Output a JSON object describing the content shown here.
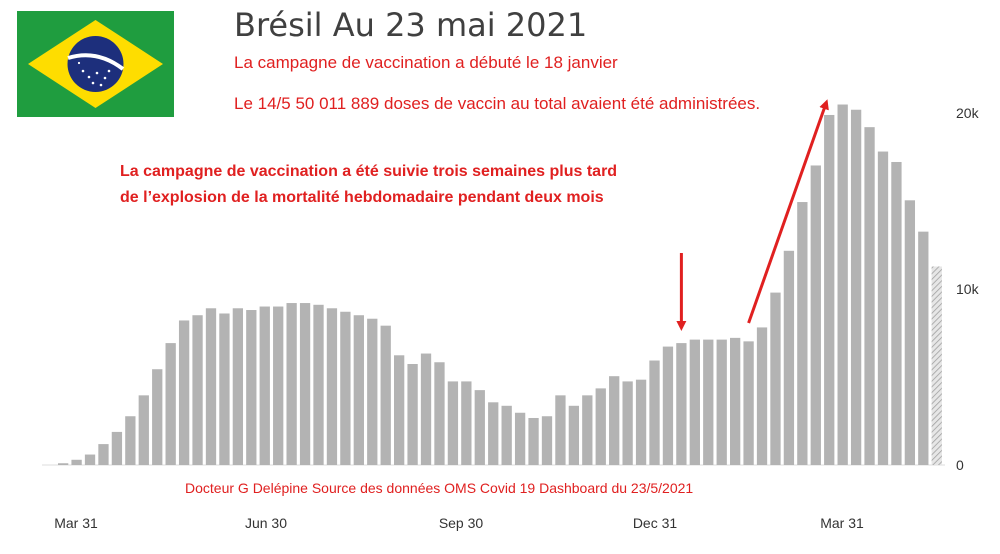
{
  "header": {
    "title": "Brésil Au 23 mai 2021",
    "line1": "La campagne de vaccination a débuté le 18 janvier",
    "line2": "Le  14/5 50 011 889 doses de vaccin au total avaient été administrées."
  },
  "annotation": {
    "line1": "La campagne de vaccination a été suivie trois semaines plus tard",
    "line2": "de l’explosion de la mortalité hebdomadaire  pendant deux mois"
  },
  "credit": "Docteur G Delépine  Source des données OMS Covid 19 Dashboard du 23/5/2021",
  "colors": {
    "bar": "#b3b3b3",
    "accent": "#e02020",
    "flag_green": "#1f9d3f",
    "flag_yellow": "#fedd00",
    "flag_blue": "#1d2f7c"
  },
  "chart_data": {
    "type": "bar",
    "x_tick_labels": [
      "Mar 31",
      "Jun 30",
      "Sep 30",
      "Dec 31",
      "Mar 31"
    ],
    "y_tick_labels": [
      "0",
      "10k",
      "20k"
    ],
    "ylim": [
      0,
      20500
    ],
    "values": [
      100,
      300,
      600,
      1200,
      1900,
      2800,
      4000,
      5500,
      7000,
      8300,
      8600,
      9000,
      8700,
      9000,
      8900,
      9100,
      9100,
      9300,
      9300,
      9200,
      9000,
      8800,
      8600,
      8400,
      8000,
      6300,
      5800,
      6400,
      5900,
      4800,
      4800,
      4300,
      3600,
      3400,
      3000,
      2700,
      2800,
      4000,
      3400,
      4000,
      4400,
      5100,
      4800,
      4900,
      6000,
      6800,
      7000,
      7200,
      7200,
      7200,
      7300,
      7100,
      7900,
      9900,
      12300,
      15100,
      17200,
      20100,
      20700,
      20400,
      19400,
      18000,
      17400,
      15200,
      13400,
      11400
    ],
    "last_bar_partial": true,
    "arrows": [
      {
        "type": "down",
        "bar_index": 46
      },
      {
        "type": "up",
        "from_bar_index": 51,
        "to_bar_index": 56
      }
    ]
  }
}
